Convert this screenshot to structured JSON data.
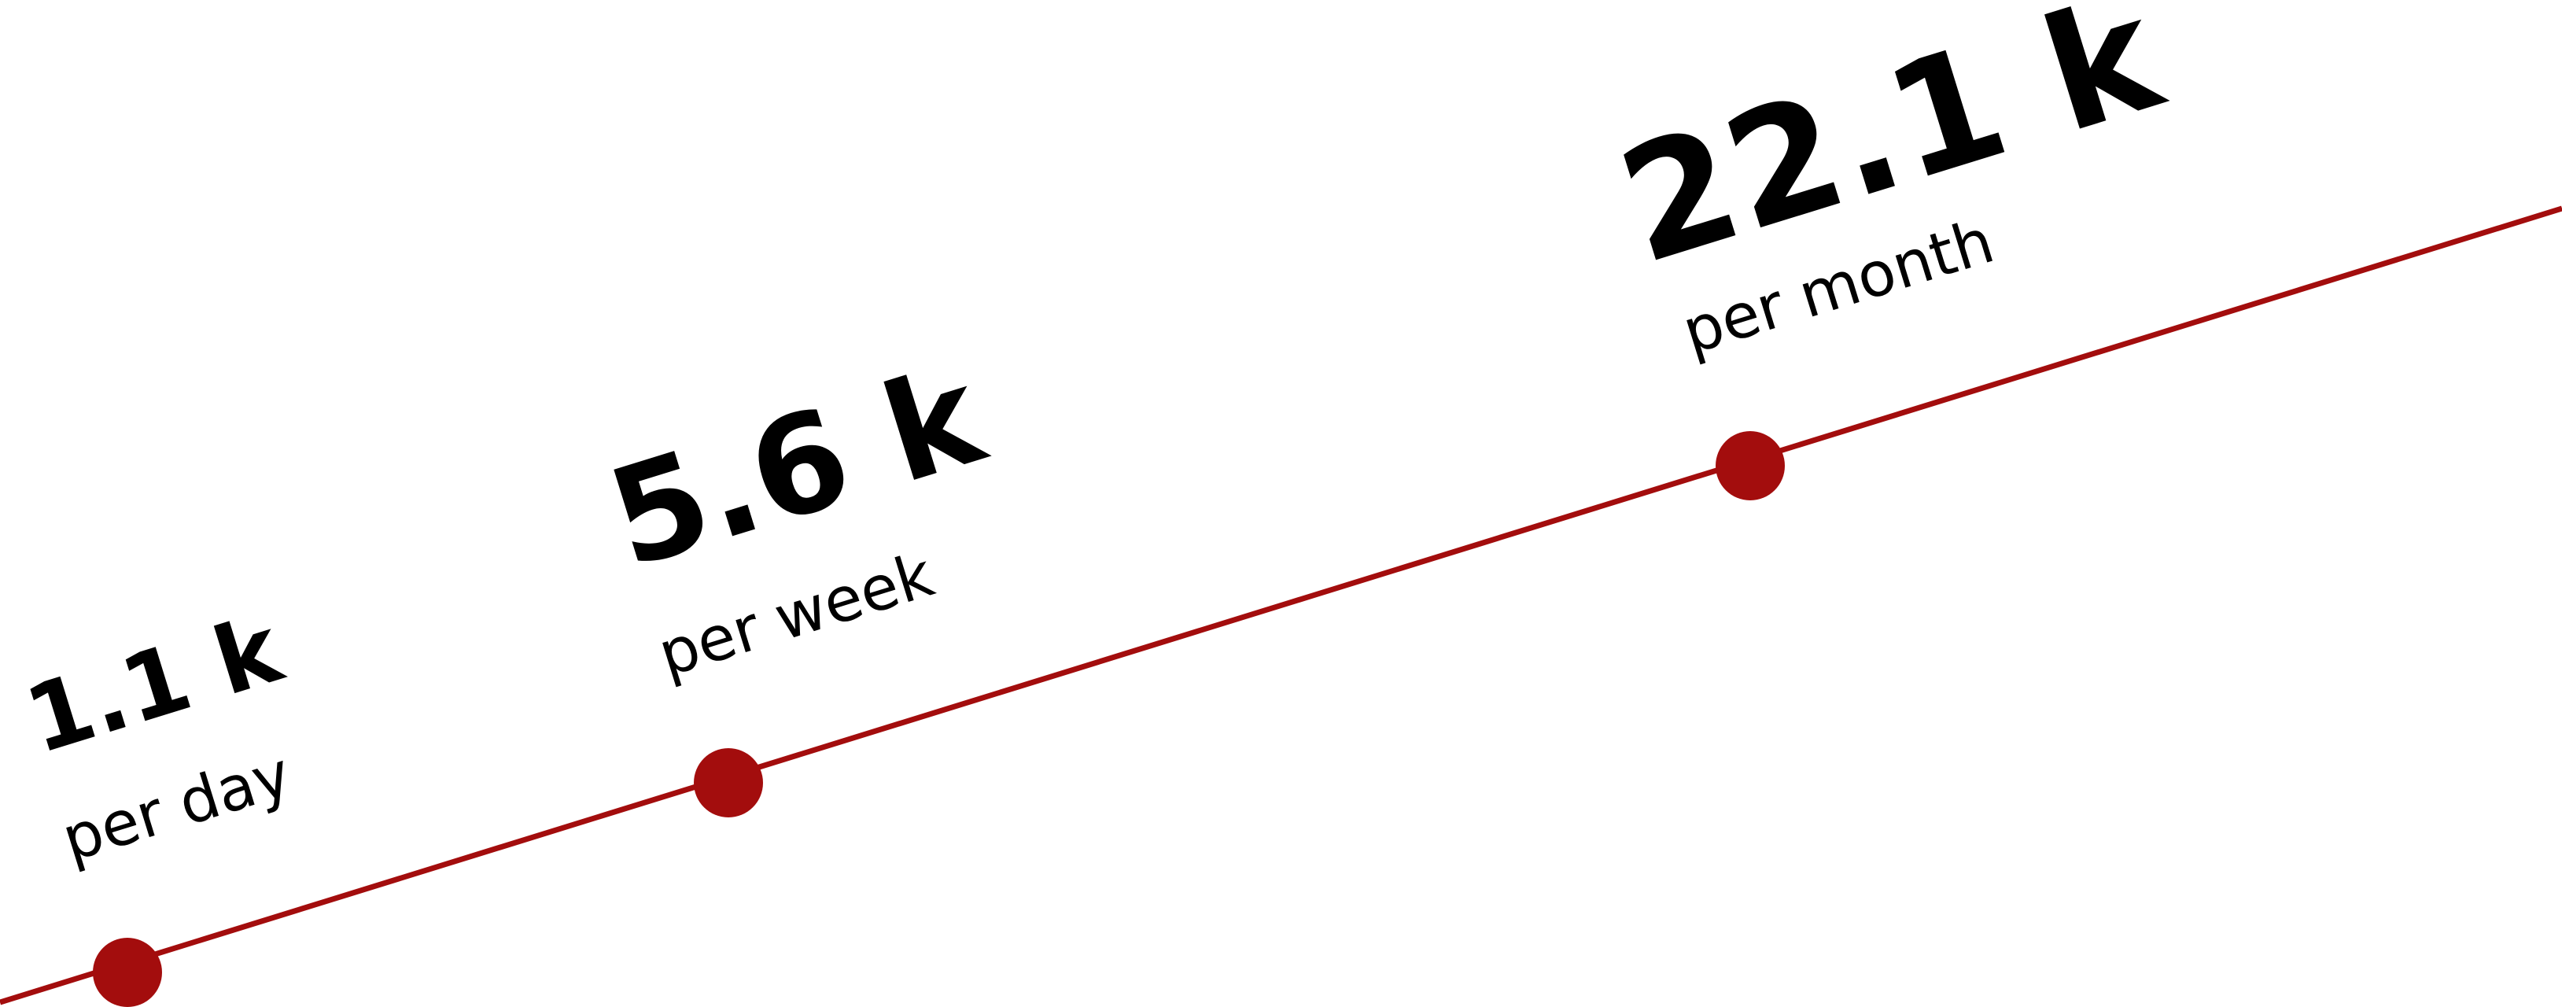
{
  "chart_data": {
    "type": "line",
    "title": "",
    "xlabel": "",
    "ylabel": "",
    "grid": false,
    "legend": "none",
    "points": [
      {
        "value": 1.1,
        "display": "1.1 k",
        "period": "per day"
      },
      {
        "value": 5.6,
        "display": "5.6 k",
        "period": "per week"
      },
      {
        "value": 22.1,
        "display": "22.1 k",
        "period": "per month"
      }
    ],
    "colors": {
      "line": "#a30d0d",
      "marker": "#a30d0d",
      "text": "#000000"
    }
  }
}
